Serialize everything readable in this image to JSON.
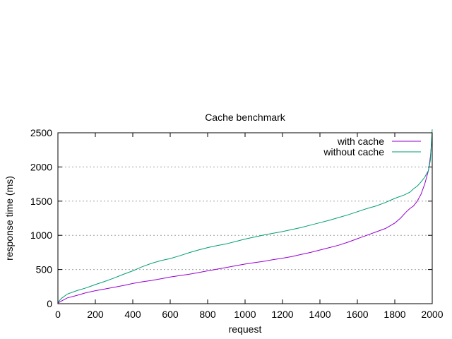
{
  "chart_data": {
    "type": "line",
    "title": "Cache benchmark",
    "xlabel": "request",
    "ylabel": "response time (ms)",
    "xlim": [
      0,
      2000
    ],
    "ylim": [
      0,
      2500
    ],
    "xticks": [
      0,
      200,
      400,
      600,
      800,
      1000,
      1200,
      1400,
      1600,
      1800,
      2000
    ],
    "yticks": [
      0,
      500,
      1000,
      1500,
      2000,
      2500
    ],
    "grid": "horizontal dotted",
    "legend_position": "top-right",
    "series": [
      {
        "name": "with cache",
        "color": "#9400d3",
        "x": [
          0,
          20,
          50,
          100,
          150,
          200,
          250,
          300,
          350,
          400,
          450,
          500,
          550,
          600,
          650,
          700,
          750,
          800,
          850,
          900,
          950,
          1000,
          1050,
          1100,
          1150,
          1200,
          1250,
          1300,
          1350,
          1400,
          1450,
          1500,
          1550,
          1600,
          1650,
          1700,
          1750,
          1800,
          1830,
          1860,
          1880,
          1900,
          1920,
          1940,
          1960,
          1980,
          1990,
          2000
        ],
        "y": [
          10,
          40,
          85,
          120,
          160,
          190,
          215,
          240,
          265,
          295,
          320,
          340,
          365,
          390,
          410,
          430,
          455,
          480,
          505,
          530,
          555,
          580,
          600,
          620,
          645,
          665,
          690,
          720,
          750,
          785,
          820,
          855,
          900,
          950,
          1000,
          1050,
          1100,
          1180,
          1250,
          1340,
          1390,
          1430,
          1500,
          1600,
          1750,
          1950,
          2150,
          2450
        ]
      },
      {
        "name": "without cache",
        "color": "#009e73",
        "x": [
          0,
          20,
          50,
          100,
          150,
          200,
          250,
          300,
          350,
          400,
          450,
          500,
          550,
          600,
          650,
          700,
          750,
          800,
          850,
          900,
          950,
          1000,
          1050,
          1100,
          1150,
          1200,
          1250,
          1300,
          1350,
          1400,
          1450,
          1500,
          1550,
          1600,
          1650,
          1700,
          1750,
          1800,
          1850,
          1880,
          1900,
          1920,
          1940,
          1960,
          1980,
          1990,
          2000
        ],
        "y": [
          20,
          80,
          140,
          190,
          230,
          280,
          325,
          375,
          430,
          480,
          540,
          590,
          630,
          660,
          700,
          745,
          785,
          820,
          850,
          875,
          910,
          945,
          975,
          1005,
          1030,
          1055,
          1085,
          1115,
          1150,
          1185,
          1220,
          1260,
          1300,
          1345,
          1390,
          1430,
          1480,
          1540,
          1590,
          1630,
          1680,
          1720,
          1780,
          1850,
          1950,
          2100,
          2550
        ]
      }
    ]
  }
}
